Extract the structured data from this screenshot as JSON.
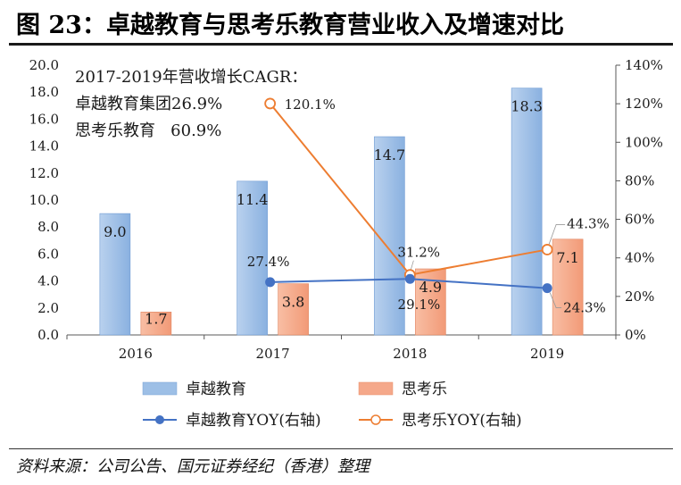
{
  "figure_title": "图 23：卓越教育与思考乐教育营业收入及增速对比",
  "source_note": "资料来源：公司公告、国元证券经纪（香港）整理",
  "colors": {
    "bar_zhuoyue": "#9dbfe6",
    "bar_sikaole": "#f5a88a",
    "line_zhuoyue": "#4472c4",
    "line_sikaole": "#ed7d31",
    "axis": "#595959",
    "text": "#1a1a1a"
  },
  "chart_data": {
    "type": "bar",
    "categories": [
      "2016",
      "2017",
      "2018",
      "2019"
    ],
    "left_axis": {
      "min": 0,
      "max": 20,
      "step": 2,
      "tick_labels": [
        "0.0",
        "2.0",
        "4.0",
        "6.0",
        "8.0",
        "10.0",
        "12.0",
        "14.0",
        "16.0",
        "18.0",
        "20.0"
      ]
    },
    "right_axis": {
      "min": 0,
      "max": 140,
      "step": 20,
      "tick_labels": [
        "0%",
        "20%",
        "40%",
        "60%",
        "80%",
        "100%",
        "120%",
        "140%"
      ]
    },
    "series": [
      {
        "name": "卓越教育",
        "kind": "bar",
        "axis": "left",
        "values": [
          9.0,
          11.4,
          14.7,
          18.3
        ],
        "labels": [
          "9.0",
          "11.4",
          "14.7",
          "18.3"
        ]
      },
      {
        "name": "思考乐",
        "kind": "bar",
        "axis": "left",
        "values": [
          1.7,
          3.8,
          4.9,
          7.1
        ],
        "labels": [
          "1.7",
          "3.8",
          "4.9",
          "7.1"
        ]
      },
      {
        "name": "卓越教育YOY(右轴)",
        "kind": "line",
        "axis": "right",
        "values": [
          null,
          27.4,
          29.1,
          24.3
        ],
        "labels": [
          "",
          "27.4%",
          "29.1%",
          "24.3%"
        ]
      },
      {
        "name": "思考乐YOY(右轴)",
        "kind": "line",
        "axis": "right",
        "values": [
          null,
          120.1,
          31.2,
          44.3
        ],
        "labels": [
          "",
          "120.1%",
          "31.2%",
          "44.3%"
        ]
      }
    ],
    "annotation": {
      "line1": "2017-2019年营收增长CAGR：",
      "line2": "卓越教育集团26.9%",
      "line3": "思考乐教育   60.9%"
    },
    "legend_position": "bottom"
  }
}
